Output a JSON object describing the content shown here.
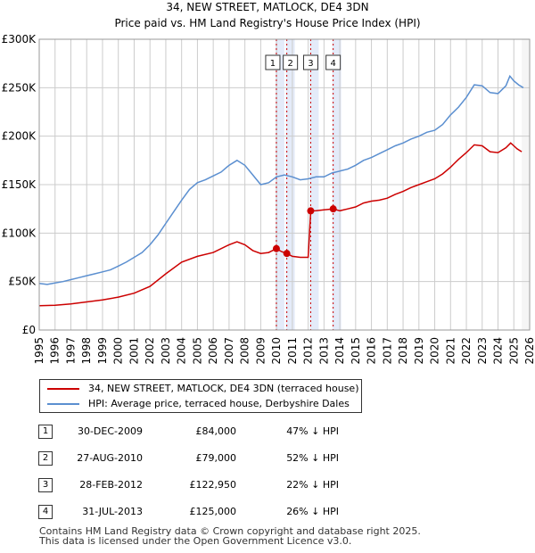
{
  "chart_data": {
    "type": "line",
    "title": "34, NEW STREET, MATLOCK, DE4 3DN",
    "subtitle": "Price paid vs. HM Land Registry's House Price Index (HPI)",
    "x_range": [
      1995,
      2026
    ],
    "ylim": [
      0,
      300000
    ],
    "y_ticks": [
      {
        "value": 0,
        "label": "£0"
      },
      {
        "value": 50000,
        "label": "£50K"
      },
      {
        "value": 100000,
        "label": "£100K"
      },
      {
        "value": 150000,
        "label": "£150K"
      },
      {
        "value": 200000,
        "label": "£200K"
      },
      {
        "value": 250000,
        "label": "£250K"
      },
      {
        "value": 300000,
        "label": "£300K"
      }
    ],
    "x_ticks": [
      "1995",
      "1996",
      "1997",
      "1998",
      "1999",
      "2000",
      "2001",
      "2002",
      "2003",
      "2004",
      "2005",
      "2006",
      "2007",
      "2008",
      "2009",
      "2010",
      "2011",
      "2012",
      "2013",
      "2014",
      "2015",
      "2016",
      "2017",
      "2018",
      "2019",
      "2020",
      "2021",
      "2022",
      "2023",
      "2024",
      "2025",
      "2026"
    ],
    "grid": true,
    "series": [
      {
        "name": "34, NEW STREET, MATLOCK, DE4 3DN (terraced house)",
        "color": "#cc0000",
        "points": [
          [
            1995.0,
            25000
          ],
          [
            1996.0,
            25500
          ],
          [
            1997.0,
            27000
          ],
          [
            1998.0,
            29000
          ],
          [
            1999.0,
            31000
          ],
          [
            2000.0,
            34000
          ],
          [
            2001.0,
            38000
          ],
          [
            2002.0,
            45000
          ],
          [
            2003.0,
            58000
          ],
          [
            2004.0,
            70000
          ],
          [
            2005.0,
            76000
          ],
          [
            2006.0,
            80000
          ],
          [
            2007.0,
            88000
          ],
          [
            2007.5,
            91000
          ],
          [
            2008.0,
            88000
          ],
          [
            2008.5,
            82000
          ],
          [
            2009.0,
            79000
          ],
          [
            2009.5,
            80000
          ],
          [
            2009.99,
            84000
          ],
          [
            2010.3,
            81000
          ],
          [
            2010.65,
            79000
          ],
          [
            2011.0,
            76000
          ],
          [
            2011.5,
            75000
          ],
          [
            2012.0,
            75000
          ],
          [
            2012.16,
            122950
          ],
          [
            2012.5,
            123000
          ],
          [
            2013.0,
            124000
          ],
          [
            2013.58,
            125000
          ],
          [
            2014.0,
            123000
          ],
          [
            2014.5,
            125000
          ],
          [
            2015.0,
            127000
          ],
          [
            2015.5,
            131000
          ],
          [
            2016.0,
            133000
          ],
          [
            2016.5,
            134000
          ],
          [
            2017.0,
            136000
          ],
          [
            2017.5,
            140000
          ],
          [
            2018.0,
            143000
          ],
          [
            2018.5,
            147000
          ],
          [
            2019.0,
            150000
          ],
          [
            2019.5,
            153000
          ],
          [
            2020.0,
            156000
          ],
          [
            2020.5,
            161000
          ],
          [
            2021.0,
            168000
          ],
          [
            2021.5,
            176000
          ],
          [
            2022.0,
            183000
          ],
          [
            2022.5,
            191000
          ],
          [
            2023.0,
            190000
          ],
          [
            2023.5,
            184000
          ],
          [
            2024.0,
            183000
          ],
          [
            2024.5,
            188000
          ],
          [
            2024.8,
            193000
          ],
          [
            2025.0,
            190000
          ],
          [
            2025.2,
            187000
          ],
          [
            2025.5,
            184000
          ]
        ]
      },
      {
        "name": "HPI: Average price, terraced house, Derbyshire Dales",
        "color": "#5b8fd0",
        "points": [
          [
            1995.0,
            48000
          ],
          [
            1995.5,
            47000
          ],
          [
            1996.0,
            48500
          ],
          [
            1996.5,
            50000
          ],
          [
            1997.0,
            52000
          ],
          [
            1997.5,
            54000
          ],
          [
            1998.0,
            56000
          ],
          [
            1998.5,
            58000
          ],
          [
            1999.0,
            60000
          ],
          [
            1999.5,
            62000
          ],
          [
            2000.0,
            66000
          ],
          [
            2000.5,
            70000
          ],
          [
            2001.0,
            75000
          ],
          [
            2001.5,
            80000
          ],
          [
            2002.0,
            88000
          ],
          [
            2002.5,
            98000
          ],
          [
            2003.0,
            110000
          ],
          [
            2003.5,
            122000
          ],
          [
            2004.0,
            134000
          ],
          [
            2004.5,
            145000
          ],
          [
            2005.0,
            152000
          ],
          [
            2005.5,
            155000
          ],
          [
            2006.0,
            159000
          ],
          [
            2006.5,
            163000
          ],
          [
            2007.0,
            170000
          ],
          [
            2007.5,
            175000
          ],
          [
            2008.0,
            170000
          ],
          [
            2008.5,
            160000
          ],
          [
            2009.0,
            150000
          ],
          [
            2009.5,
            152000
          ],
          [
            2010.0,
            158000
          ],
          [
            2010.5,
            160000
          ],
          [
            2011.0,
            158000
          ],
          [
            2011.5,
            155000
          ],
          [
            2012.0,
            156000
          ],
          [
            2012.5,
            158000
          ],
          [
            2013.0,
            158000
          ],
          [
            2013.5,
            162000
          ],
          [
            2014.0,
            164000
          ],
          [
            2014.5,
            166000
          ],
          [
            2015.0,
            170000
          ],
          [
            2015.5,
            175000
          ],
          [
            2016.0,
            178000
          ],
          [
            2016.5,
            182000
          ],
          [
            2017.0,
            186000
          ],
          [
            2017.5,
            190000
          ],
          [
            2018.0,
            193000
          ],
          [
            2018.5,
            197000
          ],
          [
            2019.0,
            200000
          ],
          [
            2019.5,
            204000
          ],
          [
            2020.0,
            206000
          ],
          [
            2020.5,
            212000
          ],
          [
            2021.0,
            222000
          ],
          [
            2021.5,
            230000
          ],
          [
            2022.0,
            240000
          ],
          [
            2022.5,
            253000
          ],
          [
            2023.0,
            252000
          ],
          [
            2023.5,
            245000
          ],
          [
            2024.0,
            244000
          ],
          [
            2024.5,
            252000
          ],
          [
            2024.75,
            262000
          ],
          [
            2025.0,
            257000
          ],
          [
            2025.3,
            253000
          ],
          [
            2025.6,
            250000
          ]
        ]
      }
    ],
    "sale_markers": [
      {
        "label": "1",
        "x": 2009.99,
        "y": 84000
      },
      {
        "label": "2",
        "x": 2010.65,
        "y": 79000
      },
      {
        "label": "3",
        "x": 2012.16,
        "y": 122950
      },
      {
        "label": "4",
        "x": 2013.58,
        "y": 125000
      }
    ],
    "forecast_start": 2025.5
  },
  "legend": {
    "property_label": "34, NEW STREET, MATLOCK, DE4 3DN (terraced house)",
    "hpi_label": "HPI: Average price, terraced house, Derbyshire Dales"
  },
  "sales": [
    {
      "num": "1",
      "date": "30-DEC-2009",
      "price": "£84,000",
      "hpi": "47% ↓ HPI"
    },
    {
      "num": "2",
      "date": "27-AUG-2010",
      "price": "£79,000",
      "hpi": "52% ↓ HPI"
    },
    {
      "num": "3",
      "date": "28-FEB-2012",
      "price": "£122,950",
      "hpi": "22% ↓ HPI"
    },
    {
      "num": "4",
      "date": "31-JUL-2013",
      "price": "£125,000",
      "hpi": "26% ↓ HPI"
    }
  ],
  "footer": {
    "line1": "Contains HM Land Registry data © Crown copyright and database right 2025.",
    "line2": "This data is licensed under the Open Government Licence v3.0."
  },
  "colors": {
    "property": "#cc0000",
    "hpi": "#5b8fd0",
    "highlight": "#dde6f7",
    "marker_line": "#cc0000"
  }
}
